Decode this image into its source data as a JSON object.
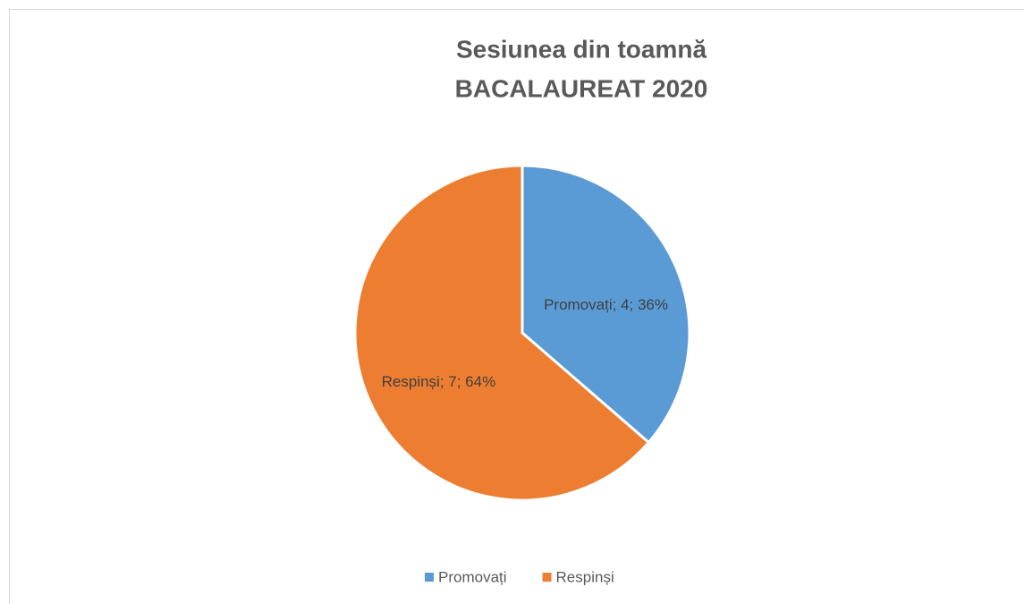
{
  "chart_data": {
    "type": "pie",
    "title": "Sesiunea din toamnă",
    "subtitle": "BACALAUREAT 2020",
    "categories": [
      "Promovați",
      "Respinși"
    ],
    "values": [
      4,
      7
    ],
    "value_labels": [
      "Promovați; 4; 36%",
      "Respinși; 7; 64%"
    ],
    "colors": [
      "#5b9bd5",
      "#ed7d31"
    ],
    "legend": "bottom"
  }
}
